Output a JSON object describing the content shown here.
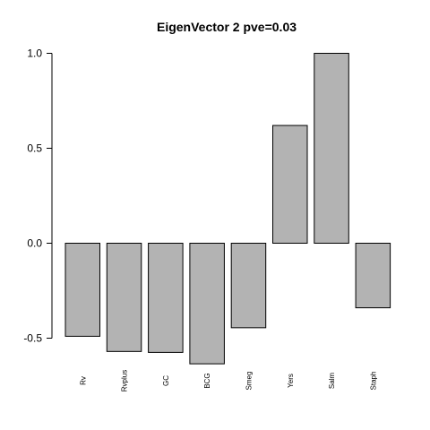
{
  "chart_data": {
    "type": "bar",
    "title": "EigenVector 2 pve=0.03",
    "xlabel": "",
    "ylabel": "",
    "categories": [
      "Rv",
      "Rvplus",
      "GC",
      "BCG",
      "Smeg",
      "Yers",
      "Salm",
      "Staph"
    ],
    "values": [
      -0.49,
      -0.57,
      -0.575,
      -0.635,
      -0.445,
      0.62,
      1.0,
      -0.34
    ],
    "ylim": [
      -0.5,
      1.0
    ],
    "yticks": [
      -0.5,
      0.0,
      0.5,
      1.0
    ],
    "ytick_labels": [
      "-0.5",
      "0.0",
      "0.5",
      "1.0"
    ],
    "bar_color": "#b3b3b3",
    "grid": false,
    "legend": "none"
  }
}
